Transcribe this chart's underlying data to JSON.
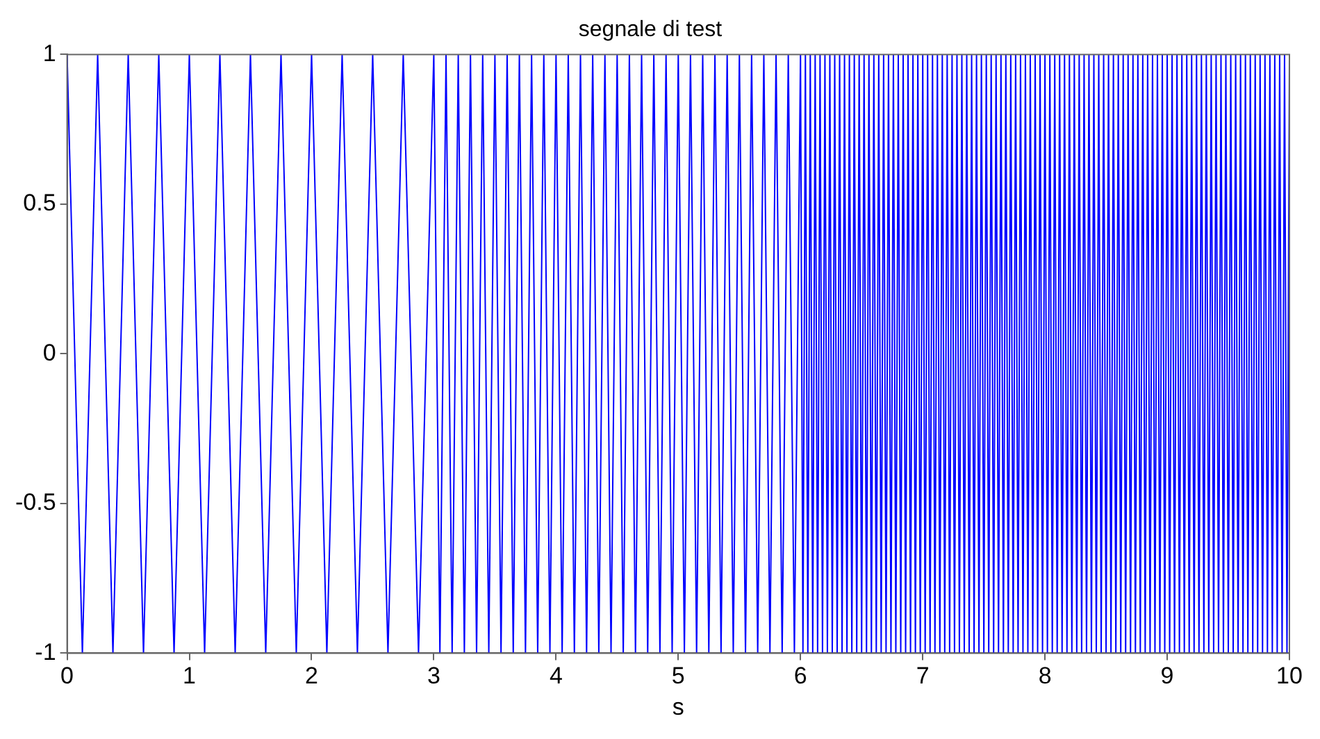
{
  "chart_data": {
    "type": "line",
    "title": "segnale di test",
    "xlabel": "s",
    "xlim": [
      0,
      10
    ],
    "xticks": [
      0,
      1,
      2,
      3,
      4,
      5,
      6,
      7,
      8,
      9,
      10
    ],
    "ylim": [
      -1,
      1
    ],
    "yticks": [
      -1,
      -0.5,
      0,
      0.5,
      1
    ],
    "marker": "none",
    "grid": false,
    "legend": false,
    "series": [
      {
        "color": "#0000ff",
        "x": [
          0,
          0.125,
          0.25,
          0.375,
          0.5,
          0.625,
          0.75,
          0.875,
          1,
          1.125,
          1.25,
          1.375,
          1.5,
          1.625,
          1.75,
          1.875,
          2,
          2.125,
          2.25,
          2.375,
          2.5,
          2.625,
          2.75,
          2.875,
          3,
          3.05,
          3.1,
          3.15,
          3.2,
          3.25,
          3.3,
          3.35,
          3.4,
          3.45,
          3.5,
          3.55,
          3.6,
          3.65,
          3.7,
          3.75,
          3.8,
          3.85,
          3.9,
          3.95,
          4,
          4.05,
          4.1,
          4.15,
          4.2,
          4.25,
          4.3,
          4.35,
          4.4,
          4.45,
          4.5,
          4.55,
          4.6,
          4.65,
          4.7,
          4.75,
          4.8,
          4.85,
          4.9,
          4.95,
          5,
          5.05,
          5.1,
          5.15,
          5.2,
          5.25,
          5.3,
          5.35,
          5.4,
          5.45,
          5.5,
          5.55,
          5.6,
          5.65,
          5.7,
          5.75,
          5.8,
          5.85,
          5.9,
          5.95,
          6,
          6.02,
          6.04,
          6.06,
          6.08,
          6.1,
          6.12,
          6.14,
          6.16,
          6.18,
          6.2,
          6.22,
          6.24,
          6.26,
          6.28,
          6.3,
          6.32,
          6.34,
          6.36,
          6.38,
          6.4,
          6.42,
          6.44,
          6.46,
          6.48,
          6.5,
          6.52,
          6.54,
          6.56,
          6.58,
          6.6,
          6.62,
          6.64,
          6.66,
          6.68,
          6.7,
          6.72,
          6.74,
          6.76,
          6.78,
          6.8,
          6.82,
          6.84,
          6.86,
          6.88,
          6.9,
          6.92,
          6.94,
          6.96,
          6.98,
          7,
          7.02,
          7.04,
          7.06,
          7.08,
          7.1,
          7.12,
          7.14,
          7.16,
          7.18,
          7.2,
          7.22,
          7.24,
          7.26,
          7.28,
          7.3,
          7.32,
          7.34,
          7.36,
          7.38,
          7.4,
          7.42,
          7.44,
          7.46,
          7.48,
          7.5,
          7.52,
          7.54,
          7.56,
          7.58,
          7.6,
          7.62,
          7.64,
          7.66,
          7.68,
          7.7,
          7.72,
          7.74,
          7.76,
          7.78,
          7.8,
          7.82,
          7.84,
          7.86,
          7.88,
          7.9,
          7.92,
          7.94,
          7.96,
          7.98,
          8,
          8.02,
          8.04,
          8.06,
          8.08,
          8.1,
          8.12,
          8.14,
          8.16,
          8.18,
          8.2,
          8.22,
          8.24,
          8.26,
          8.28,
          8.3,
          8.32,
          8.34,
          8.36,
          8.38,
          8.4,
          8.42,
          8.44,
          8.46,
          8.48,
          8.5,
          8.52,
          8.54,
          8.56,
          8.58,
          8.6,
          8.62,
          8.64,
          8.66,
          8.68,
          8.7,
          8.72,
          8.74,
          8.76,
          8.78,
          8.8,
          8.82,
          8.84,
          8.86,
          8.88,
          8.9,
          8.92,
          8.94,
          8.96,
          8.98,
          9,
          9.02,
          9.04,
          9.06,
          9.08,
          9.1,
          9.12,
          9.14,
          9.16,
          9.18,
          9.2,
          9.22,
          9.24,
          9.26,
          9.28,
          9.3,
          9.32,
          9.34,
          9.36,
          9.38,
          9.4,
          9.42,
          9.44,
          9.46,
          9.48,
          9.5,
          9.52,
          9.54,
          9.56,
          9.58,
          9.6,
          9.62,
          9.64,
          9.66,
          9.68,
          9.7,
          9.72,
          9.74,
          9.76,
          9.78,
          9.8,
          9.82,
          9.84,
          9.86,
          9.88,
          9.9,
          9.92,
          9.94,
          9.96,
          9.98,
          10
        ],
        "values": [
          1,
          -1,
          1,
          -1,
          1,
          -1,
          1,
          -1,
          1,
          -1,
          1,
          -1,
          1,
          -1,
          1,
          -1,
          1,
          -1,
          1,
          -1,
          1,
          -1,
          1,
          -1,
          1,
          -1,
          1,
          -1,
          1,
          -1,
          1,
          -1,
          1,
          -1,
          1,
          -1,
          1,
          -1,
          1,
          -1,
          1,
          -1,
          1,
          -1,
          1,
          -1,
          1,
          -1,
          1,
          -1,
          1,
          -1,
          1,
          -1,
          1,
          -1,
          1,
          -1,
          1,
          -1,
          1,
          -1,
          1,
          -1,
          1,
          -1,
          1,
          -1,
          1,
          -1,
          1,
          -1,
          1,
          -1,
          1,
          -1,
          1,
          -1,
          1,
          -1,
          1,
          -1,
          1,
          -1,
          1,
          -1,
          1,
          -1,
          1,
          -1,
          1,
          -1,
          1,
          -1,
          1,
          -1,
          1,
          -1,
          1,
          -1,
          1,
          -1,
          1,
          -1,
          1,
          -1,
          1,
          -1,
          1,
          -1,
          1,
          -1,
          1,
          -1,
          1,
          -1,
          1,
          -1,
          1,
          -1,
          1,
          -1,
          1,
          -1,
          1,
          -1,
          1,
          -1,
          1,
          -1,
          1,
          -1,
          1,
          -1,
          1,
          -1,
          1,
          -1,
          1,
          -1,
          1,
          -1,
          1,
          -1,
          1,
          -1,
          1,
          -1,
          1,
          -1,
          1,
          -1,
          1,
          -1,
          1,
          -1,
          1,
          -1,
          1,
          -1,
          1,
          -1,
          1,
          -1,
          1,
          -1,
          1,
          -1,
          1,
          -1,
          1,
          -1,
          1,
          -1,
          1,
          -1,
          1,
          -1,
          1,
          -1,
          1,
          -1,
          1,
          -1,
          1,
          -1,
          1,
          -1,
          1,
          -1,
          1,
          -1,
          1,
          -1,
          1,
          -1,
          1,
          -1,
          1,
          -1,
          1,
          -1,
          1,
          -1,
          1,
          -1,
          1,
          -1,
          1,
          -1,
          1,
          -1,
          1,
          -1,
          1,
          -1,
          1,
          -1,
          1,
          -1,
          1,
          -1,
          1,
          -1,
          1,
          -1,
          1,
          -1,
          1,
          -1,
          1,
          -1,
          1,
          -1,
          1,
          -1,
          1,
          -1,
          1,
          -1,
          1,
          -1,
          1,
          -1,
          1,
          -1,
          1,
          -1,
          1,
          -1,
          1,
          -1,
          1,
          -1,
          1,
          -1,
          1,
          -1,
          1,
          -1,
          1,
          -1,
          1,
          -1,
          1,
          -1,
          1,
          -1,
          1,
          -1,
          1,
          -1,
          1,
          -1,
          1,
          -1,
          1,
          -1,
          1,
          -1,
          1,
          -1,
          1,
          -1,
          1
        ]
      }
    ]
  }
}
